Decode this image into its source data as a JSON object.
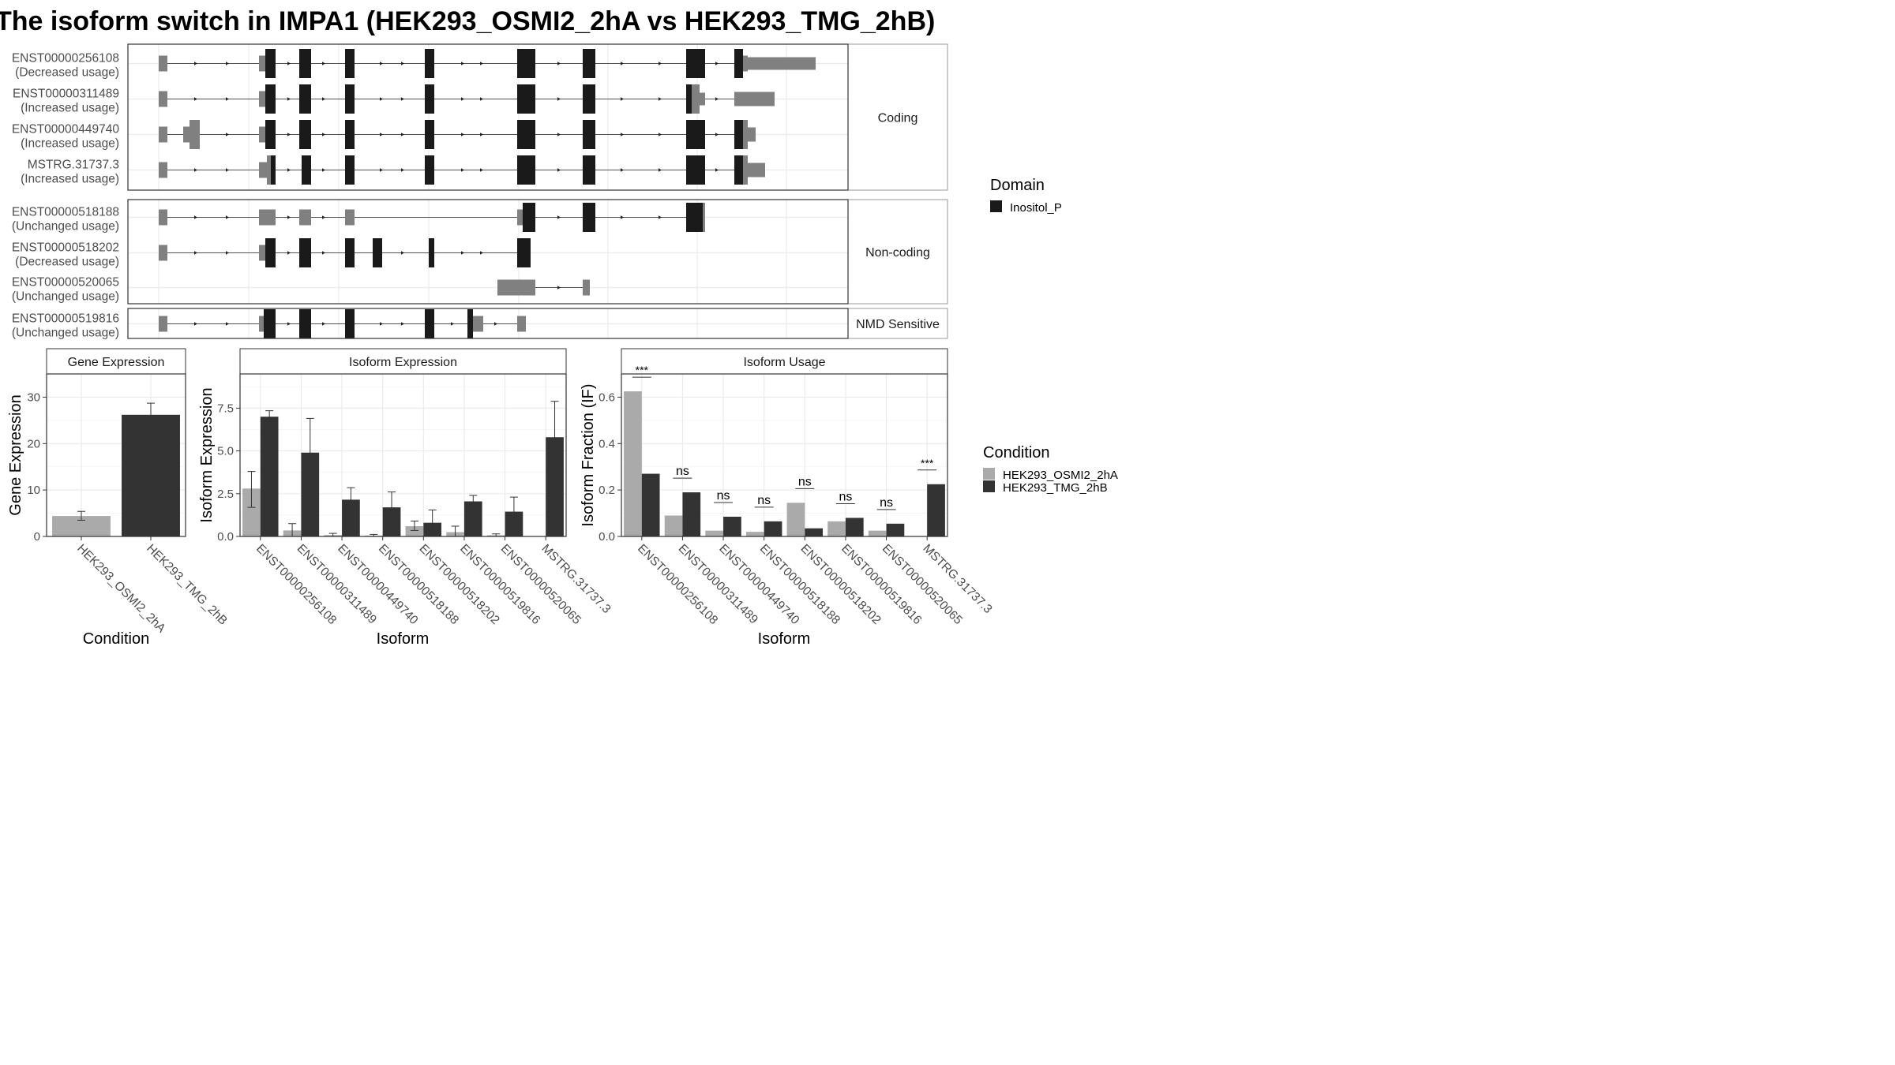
{
  "title": "The isoform switch in IMPA1 (HEK293_OSMI2_2hA vs HEK293_TMG_2hB)",
  "colors": {
    "domain": "#1a1a1a",
    "utr": "#808080",
    "condA": "#aaaaaa",
    "condB": "#333333",
    "grid": "#ebebeb"
  },
  "structure": {
    "groups": [
      {
        "label": "Coding",
        "transcripts": [
          {
            "id": "ENST00000256108",
            "usage": "(Decreased usage)"
          },
          {
            "id": "ENST00000311489",
            "usage": "(Increased usage)"
          },
          {
            "id": "ENST00000449740",
            "usage": "(Increased usage)"
          },
          {
            "id": "MSTRG.31737.3",
            "usage": "(Increased usage)"
          }
        ]
      },
      {
        "label": "Non-coding",
        "transcripts": [
          {
            "id": "ENST00000518188",
            "usage": "(Unchanged usage)"
          },
          {
            "id": "ENST00000518202",
            "usage": "(Decreased usage)"
          },
          {
            "id": "ENST00000520065",
            "usage": "(Unchanged usage)"
          }
        ]
      },
      {
        "label": "NMD Sensitive",
        "transcripts": [
          {
            "id": "ENST00000519816",
            "usage": "(Unchanged usage)"
          }
        ]
      }
    ],
    "legend": {
      "title": "Domain",
      "items": [
        {
          "label": "Inositol_P"
        }
      ]
    }
  },
  "chart_data": [
    {
      "type": "bar",
      "title": "Gene Expression",
      "xlabel": "Condition",
      "ylabel": "Gene Expression",
      "ylim": [
        0,
        35
      ],
      "yticks": [
        0,
        10,
        20,
        30
      ],
      "categories": [
        "HEK293_OSMI2_2hA",
        "HEK293_TMG_2hB"
      ],
      "values": [
        4.4,
        26.2
      ],
      "errors": [
        [
          3.5,
          5.4
        ],
        [
          23.7,
          28.7
        ]
      ]
    },
    {
      "type": "bar",
      "title": "Isoform Expression",
      "xlabel": "Isoform",
      "ylabel": "Isoform Expression",
      "ylim": [
        0,
        9.5
      ],
      "yticks": [
        0.0,
        2.5,
        5.0,
        7.5
      ],
      "categories": [
        "ENST00000256108",
        "ENST00000311489",
        "ENST00000449740",
        "ENST00000518188",
        "ENST00000518202",
        "ENST00000519816",
        "ENST00000520065",
        "MSTRG.31737.3"
      ],
      "series": [
        {
          "name": "HEK293_OSMI2_2hA",
          "values": [
            2.8,
            0.35,
            0.08,
            0.05,
            0.6,
            0.25,
            0.07,
            0.0
          ],
          "errors": [
            [
              1.7,
              3.8
            ],
            [
              0.0,
              0.75
            ],
            [
              0.0,
              0.18
            ],
            [
              0.0,
              0.12
            ],
            [
              0.35,
              0.9
            ],
            [
              0.0,
              0.6
            ],
            [
              0.0,
              0.15
            ],
            [
              0.0,
              0.0
            ]
          ]
        },
        {
          "name": "HEK293_TMG_2hB",
          "values": [
            7.0,
            4.9,
            2.15,
            1.7,
            0.8,
            2.05,
            1.45,
            5.8
          ],
          "errors": [
            [
              6.7,
              7.35
            ],
            [
              2.9,
              6.9
            ],
            [
              1.5,
              2.85
            ],
            [
              0.7,
              2.6
            ],
            [
              0.0,
              1.55
            ],
            [
              1.7,
              2.4
            ],
            [
              0.6,
              2.3
            ],
            [
              3.7,
              7.9
            ]
          ]
        }
      ]
    },
    {
      "type": "bar",
      "title": "Isoform Usage",
      "xlabel": "Isoform",
      "ylabel": "Isoform Fraction (IF)",
      "ylim": [
        0,
        0.7
      ],
      "yticks": [
        0.0,
        0.2,
        0.4,
        0.6
      ],
      "categories": [
        "ENST00000256108",
        "ENST00000311489",
        "ENST00000449740",
        "ENST00000518188",
        "ENST00000518202",
        "ENST00000519816",
        "ENST00000520065",
        "MSTRG.31737.3"
      ],
      "series": [
        {
          "name": "HEK293_OSMI2_2hA",
          "values": [
            0.625,
            0.09,
            0.025,
            0.02,
            0.145,
            0.065,
            0.025,
            0.0
          ]
        },
        {
          "name": "HEK293_TMG_2hB",
          "values": [
            0.27,
            0.19,
            0.085,
            0.065,
            0.035,
            0.08,
            0.055,
            0.225
          ]
        }
      ],
      "significance": [
        "***",
        "ns",
        "ns",
        "ns",
        "ns",
        "ns",
        "ns",
        "***"
      ],
      "legend": {
        "title": "Condition",
        "position": "right"
      }
    }
  ]
}
